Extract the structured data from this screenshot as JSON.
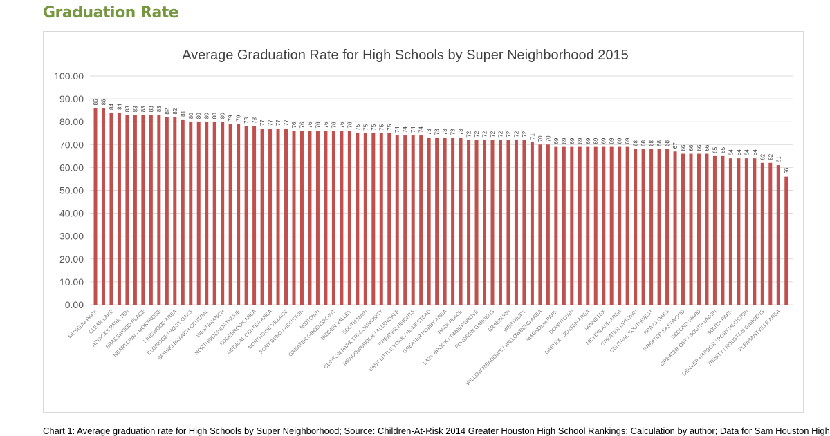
{
  "heading": "Graduation Rate",
  "caption": "Chart 1: Average graduation rate for High Schools by Super Neighborhood; Source: Children-At-Risk 2014 Greater Houston High School Rankings; Calculation by author; Data for Sam Houston High",
  "colors": {
    "bar": "#c0504d",
    "heading": "#76973f",
    "gridline": "#d9d9d9",
    "text": "#595959"
  },
  "chart_data": {
    "type": "bar",
    "title": "Average Graduation Rate for High Schools by Super Neighborhood 2015",
    "xlabel": "",
    "ylabel": "",
    "ylim": [
      0,
      100
    ],
    "yticks": [
      "0.00",
      "10.00",
      "20.00",
      "30.00",
      "40.00",
      "50.00",
      "60.00",
      "70.00",
      "80.00",
      "90.00",
      "100.00"
    ],
    "grid": true,
    "legend": "none",
    "label_interval": 2,
    "tick_labels": [
      "MUSEUM PARK",
      "CLEAR LAKE",
      "ADDICKS PARK TEN",
      "BRAESWOOD PLACE",
      "NEARTOWN - MONTROSE",
      "KINGWOOD AREA",
      "ELDRIDGE / WEST OAKS",
      "SPRING BRANCH CENTRAL",
      "WESTBRANCH",
      "NORTHSIDE/NORTHLINE",
      "EDGEBROOK AREA",
      "MEDICAL CENTER AREA",
      "NORTHSIDE VILLAGE",
      "FORT BEND / HOUSTON",
      "MIDTOWN",
      "GREATER GREENSPOINT",
      "HIDDEN VALLEY",
      "SOUTH MAIN",
      "CLINTON PARK TRI-COMMUNITY",
      "MEADOWBROOK / ALLENDALE",
      "GREATER HEIGHTS",
      "EAST LITTLE YORK / HOMESTEAD",
      "GREATER HOBBY AREA",
      "PARK PLACE",
      "LAZY BROOK / TIMBERGROVE",
      "FONDREN GARDENS",
      "BRAEBURN",
      "WESTBURY",
      "WILLOW MEADOWS / WILLOWBEND AREA",
      "MAGNOLIA PARK",
      "DOWNTOWN",
      "EASTEX - JENSEN AREA",
      "MINNETEX",
      "MEYERLAND AREA",
      "GREATER UPTOWN",
      "CENTRAL SOUTHWEST",
      "BRAYS OAKS",
      "GREATER EASTWOOD",
      "SECOND WARD",
      "GREATER OST / SOUTH UNION",
      "SOUTH PARK",
      "DENVER HARBOR / PORT HOUSTON",
      "TRINITY / HOUSTON GARDENS",
      "PLEASANTVILLE AREA"
    ],
    "values": [
      86,
      86,
      84,
      84,
      83,
      83,
      83,
      83,
      83,
      82,
      82,
      81,
      80,
      80,
      80,
      80,
      80,
      79,
      79,
      78,
      78,
      77,
      77,
      77,
      77,
      76,
      76,
      76,
      76,
      76,
      76,
      76,
      76,
      75,
      75,
      75,
      75,
      75,
      74,
      74,
      74,
      74,
      73,
      73,
      73,
      73,
      73,
      72,
      72,
      72,
      72,
      72,
      72,
      72,
      72,
      71,
      70,
      70,
      69,
      69,
      69,
      69,
      69,
      69,
      69,
      69,
      69,
      69,
      68,
      68,
      68,
      68,
      68,
      67,
      66,
      66,
      66,
      66,
      65,
      65,
      64,
      64,
      64,
      64,
      62,
      62,
      61,
      56
    ]
  }
}
